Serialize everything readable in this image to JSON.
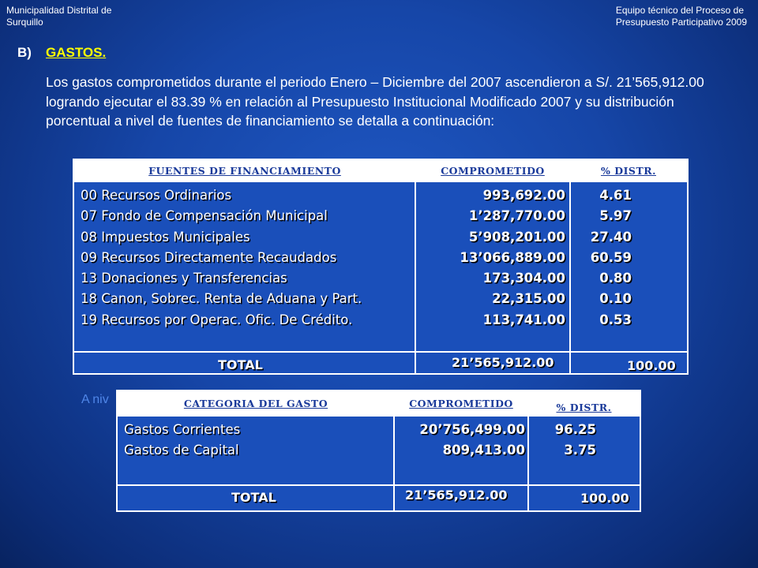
{
  "header": {
    "left_line1": "Municipalidad Distrital de",
    "left_line2": "Surquillo",
    "right_line1": "Equipo técnico del Proceso de",
    "right_line2": "Presupuesto Participativo 2009"
  },
  "section": {
    "letter": "B)",
    "title": "GASTOS."
  },
  "paragraph": "Los gastos comprometidos durante el periodo Enero – Diciembre del 2007 ascendieron a S/. 21’565,912.00  logrando  ejecutar el 83.39 %  en relación al Presupuesto Institucional Modificado 2007 y su distribución porcentual a nivel de fuentes de financiamiento se detalla a continuación:",
  "ghost_text": "A niv",
  "table1": {
    "headers": [
      "FUENTES DE FINANCIAMIENTO",
      "COMPROMETIDO",
      "% DISTR."
    ],
    "rows": [
      {
        "name": "00 Recursos Ordinarios",
        "amount": "993,692.00",
        "pct": "4.61"
      },
      {
        "name": "07 Fondo de Compensación Municipal",
        "amount": "1’287,770.00",
        "pct": "5.97"
      },
      {
        "name": "08 Impuestos Municipales",
        "amount": "5’908,201.00",
        "pct": "27.40"
      },
      {
        "name": "09 Recursos Directamente Recaudados",
        "amount": "13’066,889.00",
        "pct": "60.59"
      },
      {
        "name": "13 Donaciones y Transferencias",
        "amount": "173,304.00",
        "pct": "0.80"
      },
      {
        "name": "18 Canon, Sobrec. Renta de Aduana y Part.",
        "amount": "22,315.00",
        "pct": "0.10"
      },
      {
        "name": "19 Recursos por Operac. Ofic. De Crédito.",
        "amount": "113,741.00",
        "pct": "0.53"
      }
    ],
    "total": {
      "label": "TOTAL",
      "amount": "21’565,912.00",
      "pct": "100.00"
    }
  },
  "table2": {
    "headers": [
      "CATEGORIA DEL  GASTO",
      "COMPROMETIDO",
      "% DISTR."
    ],
    "rows": [
      {
        "name": "Gastos Corrientes",
        "amount": "20’756,499.00",
        "pct": "96.25"
      },
      {
        "name": "Gastos de Capital",
        "amount": "809,413.00",
        "pct": "3.75"
      }
    ],
    "total": {
      "label": "TOTAL",
      "amount": "21’565,912.00",
      "pct": "100.00"
    }
  }
}
